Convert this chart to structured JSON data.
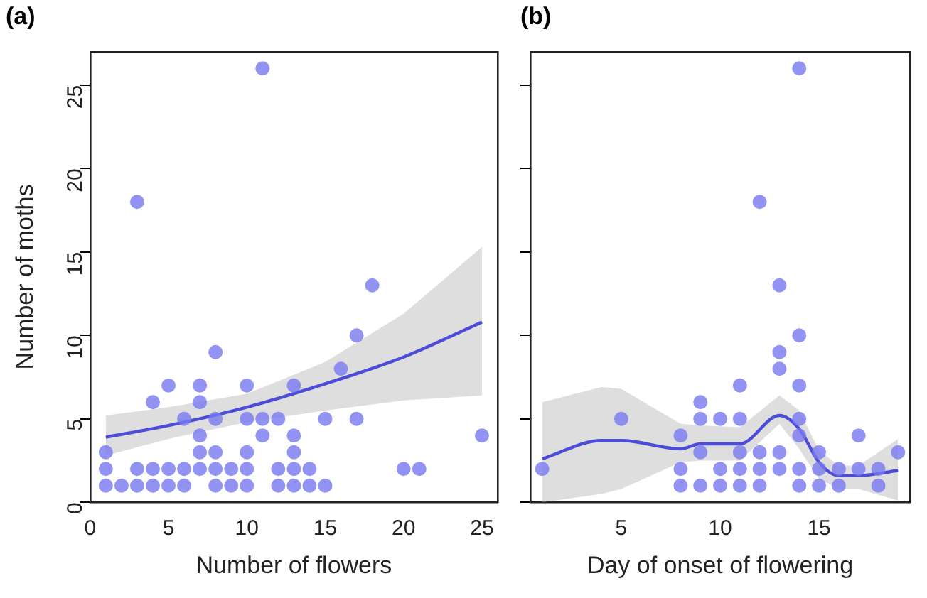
{
  "chart_data": [
    {
      "type": "scatter",
      "title": "(a)",
      "xlabel": "Number of flowers",
      "ylabel": "Number of moths",
      "xlim": [
        0,
        26
      ],
      "ylim": [
        0,
        27
      ],
      "xticks": [
        0,
        5,
        10,
        15,
        20,
        25
      ],
      "yticks": [
        0,
        5,
        10,
        15,
        20,
        25
      ],
      "grid": false,
      "legend": false,
      "marker": "circle",
      "series": [
        {
          "type": "line",
          "color": "#4c4cd8",
          "line_style": "solid",
          "marker": "none",
          "x": [
            1,
            5,
            10,
            15,
            20,
            25
          ],
          "values": [
            3.9,
            4.6,
            5.7,
            7.1,
            8.7,
            10.8
          ],
          "lower": [
            2.8,
            3.8,
            4.8,
            5.5,
            6.1,
            6.4
          ],
          "upper": [
            5.2,
            5.7,
            6.5,
            8.4,
            11.3,
            15.3
          ]
        },
        {
          "type": "scatter",
          "color": "#7878f0",
          "x": [
            1,
            2,
            3,
            4,
            5,
            6,
            8,
            9,
            10,
            12,
            13,
            14,
            15,
            1,
            3,
            4,
            5,
            6,
            7,
            8,
            9,
            10,
            12,
            13,
            14,
            20,
            21,
            1,
            7,
            8,
            10,
            13,
            7,
            11,
            13,
            25,
            6,
            8,
            10,
            11,
            12,
            15,
            17,
            4,
            7,
            5,
            7,
            10,
            13,
            16,
            8,
            17,
            18,
            3,
            11
          ],
          "values": [
            1,
            1,
            1,
            1,
            1,
            1,
            1,
            1,
            1,
            1,
            1,
            1,
            1,
            2,
            2,
            2,
            2,
            2,
            2,
            2,
            2,
            2,
            2,
            2,
            2,
            2,
            2,
            3,
            3,
            3,
            3,
            3,
            4,
            4,
            4,
            4,
            5,
            5,
            5,
            5,
            5,
            5,
            5,
            6,
            6,
            7,
            7,
            7,
            7,
            8,
            9,
            10,
            13,
            18,
            26
          ]
        }
      ]
    },
    {
      "type": "scatter",
      "title": "(b)",
      "xlabel": "Day of onset of flowering",
      "xlim": [
        0.4,
        19.6
      ],
      "ylim": [
        0,
        27
      ],
      "xticks": [
        5,
        10,
        15
      ],
      "yticks": [
        0,
        5,
        10,
        15,
        20,
        25
      ],
      "tick_labels": "x",
      "grid": false,
      "legend": false,
      "marker": "circle",
      "series": [
        {
          "type": "line",
          "color": "#4c4cd8",
          "line_style": "solid",
          "marker": "none",
          "x": [
            1,
            4,
            5,
            8,
            9,
            11,
            13,
            14,
            15,
            16,
            17,
            19
          ],
          "values": [
            2.6,
            3.7,
            3.7,
            3.2,
            3.5,
            3.5,
            5.2,
            4.4,
            2.4,
            1.6,
            1.6,
            1.9
          ],
          "lower": [
            0,
            0.5,
            0.8,
            2.4,
            2.5,
            2.5,
            4.7,
            3.2,
            1.4,
            0.8,
            0.8,
            0.1
          ],
          "upper": [
            6,
            6.9,
            6.8,
            4.7,
            4.6,
            4.5,
            6.4,
            5.5,
            3.1,
            2.2,
            2.2,
            3.8
          ]
        },
        {
          "type": "scatter",
          "color": "#7878f0",
          "x": [
            8,
            9,
            10,
            11,
            12,
            14,
            15,
            16,
            18,
            1,
            8,
            10,
            11,
            12,
            13,
            14,
            15,
            16,
            17,
            18,
            9,
            11,
            12,
            13,
            15,
            19,
            8,
            14,
            17,
            5,
            9,
            10,
            11,
            14,
            9,
            11,
            14,
            13,
            13,
            14,
            13,
            12,
            14
          ],
          "values": [
            1,
            1,
            1,
            1,
            1,
            1,
            1,
            1,
            1,
            2,
            2,
            2,
            2,
            2,
            2,
            2,
            2,
            2,
            2,
            2,
            3,
            3,
            3,
            3,
            3,
            3,
            4,
            4,
            4,
            5,
            5,
            5,
            5,
            5,
            6,
            7,
            7,
            8,
            9,
            10,
            13,
            18,
            26
          ]
        }
      ]
    }
  ]
}
